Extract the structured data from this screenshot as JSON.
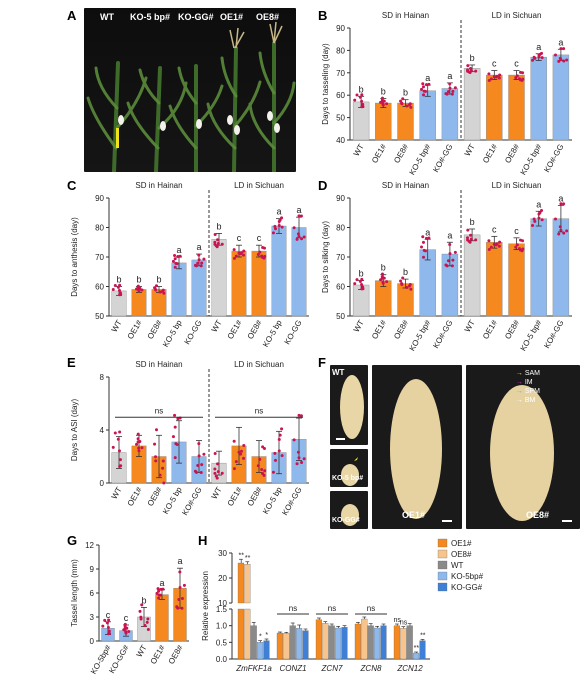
{
  "colors": {
    "wt": "#d4d4d4",
    "oe": "#f5891f",
    "oe_light": "#f6c48c",
    "ko": "#8fb9ec",
    "ko_dark": "#3f7fd6",
    "dot": "#c9144f",
    "sig": "#333333"
  },
  "panels": {
    "A": "A",
    "B": "B",
    "C": "C",
    "D": "D",
    "E": "E",
    "F": "F",
    "G": "G",
    "H": "H"
  },
  "photo_A": {
    "labels": [
      "WT",
      "KO-5 bp#",
      "KO-GG#",
      "OE1#",
      "OE8#"
    ]
  },
  "photo_F": {
    "labels": {
      "wt": "WT",
      "ko5": "KO-5 bp#",
      "kogg": "KO-GG#",
      "oe1": "OE1#",
      "oe8": "OE8#"
    },
    "legend": [
      {
        "label": "SAM",
        "color": "#f2e62a"
      },
      {
        "label": "IM",
        "color": "#e23ad6"
      },
      {
        "label": "SPM",
        "color": "#3fc0e6"
      },
      {
        "label": "BM",
        "color": "#ffffff"
      }
    ]
  },
  "chart_data": [
    {
      "id": "B",
      "type": "bar",
      "ylabel": "Days to tasseling (day)",
      "ylim": [
        40,
        90
      ],
      "yticks": [
        40,
        50,
        60,
        70,
        80,
        90
      ],
      "groups": [
        "SD in Hainan",
        "LD in Sichuan"
      ],
      "categories": [
        "WT",
        "OE1#",
        "OE8#",
        "KO-5 bp#",
        "KO#-GG",
        "WT",
        "OE1#",
        "OE8#",
        "KO-5 bp#",
        "KO#-GG"
      ],
      "values": [
        57,
        56.5,
        56.5,
        62,
        63,
        72,
        69,
        69,
        77,
        78
      ],
      "errors": [
        2.5,
        2,
        1.5,
        2.5,
        2.5,
        1.5,
        2,
        2,
        1.5,
        2.5
      ],
      "letters": [
        "b",
        "b",
        "b",
        "a",
        "a",
        "b",
        "c",
        "c",
        "a",
        "a"
      ]
    },
    {
      "id": "C",
      "type": "bar",
      "ylabel": "Days to anthesis (day)",
      "ylim": [
        50,
        90
      ],
      "yticks": [
        50,
        60,
        70,
        80,
        90
      ],
      "groups": [
        "SD in Hainan",
        "LD in Sichuan"
      ],
      "categories": [
        "WT",
        "OE1#",
        "OE8#",
        "KO-5 bp",
        "KO-GG",
        "WT",
        "OE1#",
        "OE8#",
        "KO-5 bp",
        "KO-GG"
      ],
      "values": [
        58.5,
        59,
        59,
        68,
        69,
        76,
        72,
        72,
        80.5,
        80
      ],
      "errors": [
        1.5,
        1,
        1,
        2,
        2,
        2,
        2,
        2,
        2.5,
        3.5
      ],
      "letters": [
        "b",
        "b",
        "b",
        "a",
        "a",
        "b",
        "c",
        "c",
        "a",
        "a"
      ]
    },
    {
      "id": "D",
      "type": "bar",
      "ylabel": "Days to silking (day)",
      "ylim": [
        50,
        90
      ],
      "yticks": [
        50,
        60,
        70,
        80,
        90
      ],
      "groups": [
        "SD in Hainan",
        "LD in Sichuan"
      ],
      "categories": [
        "WT",
        "OE1#",
        "OE8#",
        "KO-5 bp#",
        "KO#-GG",
        "WT",
        "OE1#",
        "OE8#",
        "KO-5 bp#",
        "KO#-GG"
      ],
      "values": [
        60.5,
        62,
        61,
        72.5,
        71,
        77.5,
        75,
        74.5,
        83,
        83
      ],
      "errors": [
        1.5,
        2,
        1.5,
        3.5,
        4,
        2,
        2,
        2,
        2.5,
        4.5
      ],
      "letters": [
        "b",
        "b",
        "b",
        "a",
        "a",
        "b",
        "c",
        "c",
        "a",
        "a"
      ]
    },
    {
      "id": "E",
      "type": "bar",
      "ylabel": "Days to ASI (day)",
      "ylim": [
        0,
        8
      ],
      "yticks": [
        0,
        4,
        8
      ],
      "groups": [
        "SD in Hainan",
        "LD in Sichuan"
      ],
      "categories": [
        "WT",
        "OE1#",
        "OE8#",
        "KO-5 bp",
        "KO#-GG",
        "WT",
        "OE1#",
        "OE8#",
        "KO-5 bp",
        "KO#-GG"
      ],
      "values": [
        2.3,
        2.8,
        2,
        3.1,
        2,
        1.5,
        2.8,
        2,
        2.3,
        3.3
      ],
      "errors": [
        1.2,
        0.8,
        1.6,
        1.6,
        1.2,
        0.9,
        1.4,
        1.2,
        1.6,
        1.6
      ],
      "sig": [
        "ns",
        "ns"
      ]
    },
    {
      "id": "G",
      "type": "bar",
      "ylabel": "Tassel length (mm)",
      "ylim": [
        0,
        12
      ],
      "yticks": [
        0,
        3,
        6,
        9,
        12
      ],
      "categories": [
        "KO-5bp#",
        "KO-GG#",
        "WT",
        "OE1#",
        "OE8#"
      ],
      "values": [
        1.6,
        1.3,
        3,
        5.8,
        6.6
      ],
      "errors": [
        0.8,
        0.7,
        1.2,
        0.6,
        2.5
      ],
      "letters": [
        "c",
        "c",
        "b",
        "a",
        "a"
      ]
    },
    {
      "id": "H",
      "type": "bar",
      "ylabel": "Relative expression",
      "genes": [
        "ZmFKF1a",
        "CONZ1",
        "ZCN7",
        "ZCN8",
        "ZCN12"
      ],
      "series": [
        {
          "name": "OE1#",
          "values": [
            26,
            0.78,
            1.18,
            1.05,
            1.0
          ]
        },
        {
          "name": "OE8#",
          "values": [
            25.5,
            0.77,
            1.07,
            1.2,
            0.92
          ]
        },
        {
          "name": "WT",
          "values": [
            1.0,
            1.0,
            1.0,
            1.0,
            1.0
          ]
        },
        {
          "name": "KO-5bp#",
          "values": [
            0.5,
            0.92,
            0.93,
            0.93,
            0.18
          ]
        },
        {
          "name": "KO-GG#",
          "values": [
            0.55,
            0.85,
            0.95,
            1.0,
            0.55
          ]
        }
      ],
      "errors": [
        [
          1.5,
          0.03,
          0.05,
          0.05,
          0.05
        ],
        [
          1.0,
          0.03,
          0.05,
          0.06,
          0.05
        ],
        [
          0.1,
          0.08,
          0.05,
          0.06,
          0.06
        ],
        [
          0.05,
          0.1,
          0.05,
          0.05,
          0.03
        ],
        [
          0.05,
          0.05,
          0.05,
          0.05,
          0.04
        ]
      ],
      "yticks_low": [
        0.0,
        0.5,
        1.0,
        1.5
      ],
      "yticks_high": [
        10,
        20,
        30
      ],
      "sig": {
        "ZmFKF1a": [
          "**",
          "**",
          "",
          "*",
          "*"
        ],
        "CONZ1": "ns",
        "ZCN7": "ns",
        "ZCN8": "ns",
        "ZCN12": [
          "ns",
          "ns",
          "",
          "**",
          "**"
        ]
      }
    }
  ]
}
